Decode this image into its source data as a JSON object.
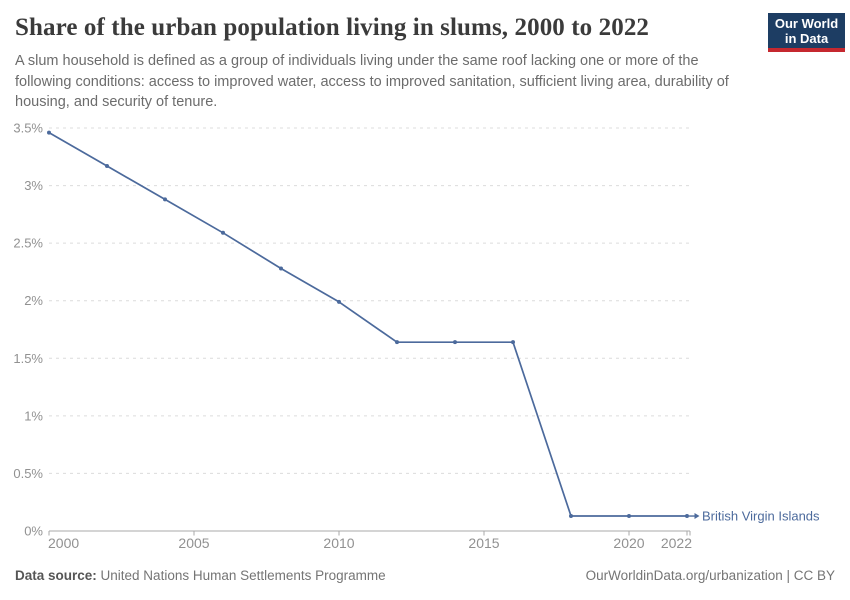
{
  "header": {
    "title": "Share of the urban population living in slums, 2000 to 2022",
    "subtitle": "A slum household is defined as a group of individuals living under the same roof lacking one or more of the following conditions: access to improved water, access to improved sanitation, sufficient living area, durability of housing, and security of tenure."
  },
  "logo": {
    "line1": "Our World",
    "line2": "in Data",
    "bg_color": "#1d3d63",
    "accent_color": "#c5282f"
  },
  "footer": {
    "source_label": "Data source:",
    "source_text": " United Nations Human Settlements Programme",
    "credit": "OurWorldinData.org/urbanization | CC BY"
  },
  "chart_data": {
    "type": "line",
    "title": "Share of the urban population living in slums, 2000 to 2022",
    "xlabel": "",
    "ylabel": "",
    "x": [
      2000,
      2002,
      2004,
      2006,
      2008,
      2010,
      2012,
      2014,
      2016,
      2018,
      2020,
      2022
    ],
    "series": [
      {
        "name": "British Virgin Islands",
        "color": "#4c6a9c",
        "values": [
          3.46,
          3.17,
          2.88,
          2.59,
          2.28,
          1.99,
          1.64,
          1.64,
          1.64,
          0.13,
          0.13,
          0.13
        ]
      }
    ],
    "xlim": [
      2000,
      2022
    ],
    "ylim": [
      0,
      3.5
    ],
    "xticks": [
      2000,
      2005,
      2010,
      2015,
      2020,
      2022
    ],
    "yticks": [
      {
        "value": 0,
        "label": "0%"
      },
      {
        "value": 0.5,
        "label": "0.5%"
      },
      {
        "value": 1,
        "label": "1%"
      },
      {
        "value": 1.5,
        "label": "1.5%"
      },
      {
        "value": 2,
        "label": "2%"
      },
      {
        "value": 2.5,
        "label": "2.5%"
      },
      {
        "value": 3,
        "label": "3%"
      },
      {
        "value": 3.5,
        "label": "3.5%"
      }
    ],
    "grid": "horizontal-dashed",
    "legend": "series-end-label",
    "colors": {
      "grid": "#dcdcdc",
      "axis": "#a8a8a8",
      "tick_label": "#919191"
    }
  }
}
